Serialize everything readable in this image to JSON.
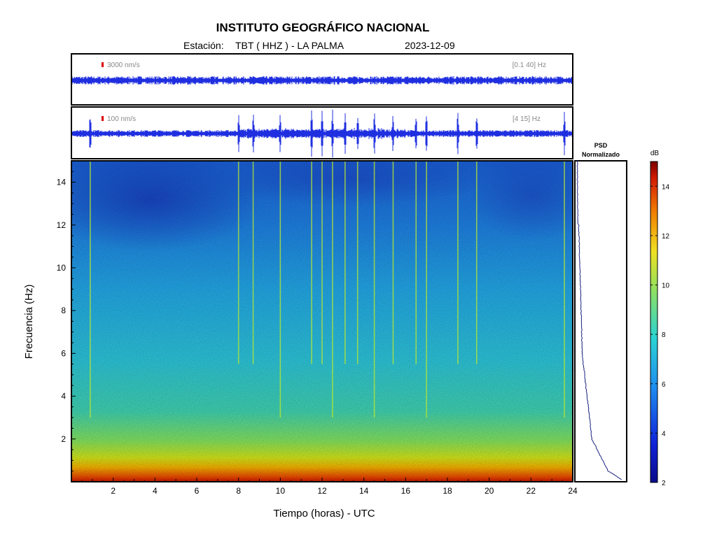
{
  "header": {
    "title": "INSTITUTO GEOGRÁFICO NACIONAL",
    "station_label": "Estación:",
    "station": "TBT ( HHZ ) - LA PALMA",
    "date": "2023-12-09"
  },
  "trace_top": {
    "scale_label": "3000 nm/s",
    "band_label": "[0.1 40] Hz",
    "scale_color": "#dd0000"
  },
  "trace_bottom": {
    "scale_label": "100 nm/s",
    "band_label": "[4 15] Hz",
    "scale_color": "#dd0000"
  },
  "psd": {
    "title_line1": "PSD",
    "title_line2": "Normalizado"
  },
  "colorbar": {
    "unit_label": "dB",
    "ticks": [
      "14",
      "12",
      "10",
      "8",
      "6",
      "4",
      "2"
    ]
  },
  "chart_data": {
    "type": "heatmap",
    "xlabel": "Tiempo (horas) - UTC",
    "ylabel": "Frecuencia  (Hz)",
    "xlim": [
      0,
      24
    ],
    "ylim": [
      0,
      15
    ],
    "x_ticks": [
      "2",
      "4",
      "6",
      "8",
      "10",
      "12",
      "14",
      "16",
      "18",
      "20",
      "22",
      "24"
    ],
    "y_ticks": [
      "14",
      "12",
      "10",
      "8",
      "6",
      "4",
      "2"
    ],
    "colorbar_range_db": [
      2,
      15
    ],
    "event_times_hours": [
      0.9,
      8.0,
      8.7,
      10.0,
      11.5,
      12.0,
      12.5,
      13.1,
      13.7,
      14.5,
      15.4,
      16.5,
      17.0,
      18.5,
      19.4,
      23.6
    ],
    "colors": {
      "low": "#1a2fb0",
      "mid": "#2fd0cf",
      "high": "#d81e00",
      "trace": "#1f2fe0",
      "psd_line": "#1a237e"
    }
  }
}
